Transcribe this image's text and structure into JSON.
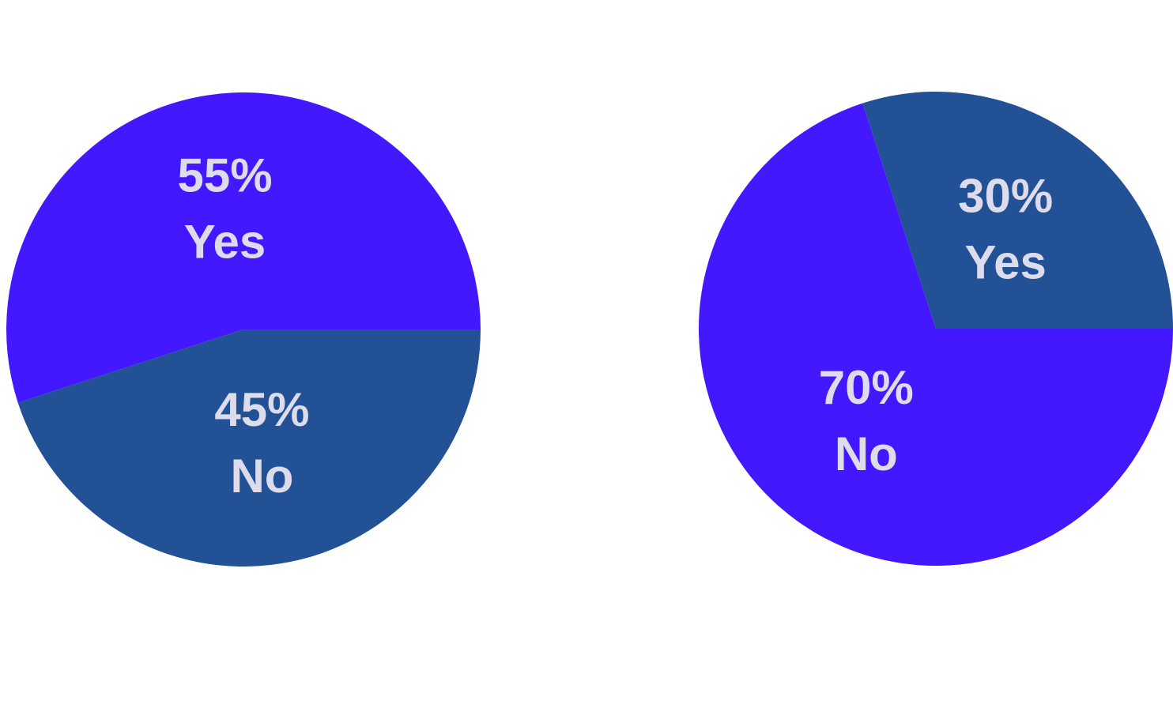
{
  "chart_data": [
    {
      "type": "pie",
      "categories": [
        "Yes",
        "No"
      ],
      "values": [
        55,
        45
      ],
      "value_labels": [
        "55%",
        "45%"
      ],
      "colors": [
        "#4318ff",
        "#225295"
      ]
    },
    {
      "type": "pie",
      "categories": [
        "Yes",
        "No"
      ],
      "values": [
        30,
        70
      ],
      "value_labels": [
        "30%",
        "70%"
      ],
      "colors": [
        "#225295",
        "#4318ff"
      ]
    }
  ]
}
